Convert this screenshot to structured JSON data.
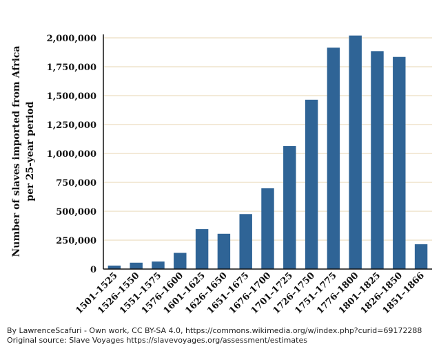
{
  "chart_data": {
    "type": "bar",
    "title": "",
    "ylabel_lines": [
      "Number of slaves imported from Africa",
      "per 25-year period"
    ],
    "xlabel": "",
    "categories": [
      "1501–1525",
      "1526–1550",
      "1551–1575",
      "1576–1600",
      "1601–1625",
      "1626–1650",
      "1651–1675",
      "1676–1700",
      "1701–1725",
      "1726–1750",
      "1751–1775",
      "1776–1800",
      "1801–1825",
      "1826–1850",
      "1851–1866"
    ],
    "values": [
      30000,
      55000,
      65000,
      140000,
      345000,
      305000,
      475000,
      700000,
      1065000,
      1465000,
      1915000,
      2020000,
      1885000,
      1835000,
      215000
    ],
    "ylim": [
      0,
      2000000
    ],
    "yticks": [
      0,
      250000,
      500000,
      750000,
      1000000,
      1250000,
      1500000,
      1750000,
      2000000
    ],
    "ytick_labels": [
      "0",
      "250,000",
      "500,000",
      "750,000",
      "1,000,000",
      "1,250,000",
      "1,500,000",
      "1,750,000",
      "2,000,000"
    ],
    "grid": true,
    "legend": "none",
    "colors": {
      "bar": "#2f6496",
      "grid": "#efe3cc",
      "axis": "#111111"
    }
  },
  "credits": {
    "line1": "By LawrenceScafuri - Own work, CC BY-SA 4.0, https://commons.wikimedia.org/w/index.php?curid=69172288",
    "line2": "Original source: Slave Voyages  https://slavevoyages.org/assessment/estimates"
  }
}
